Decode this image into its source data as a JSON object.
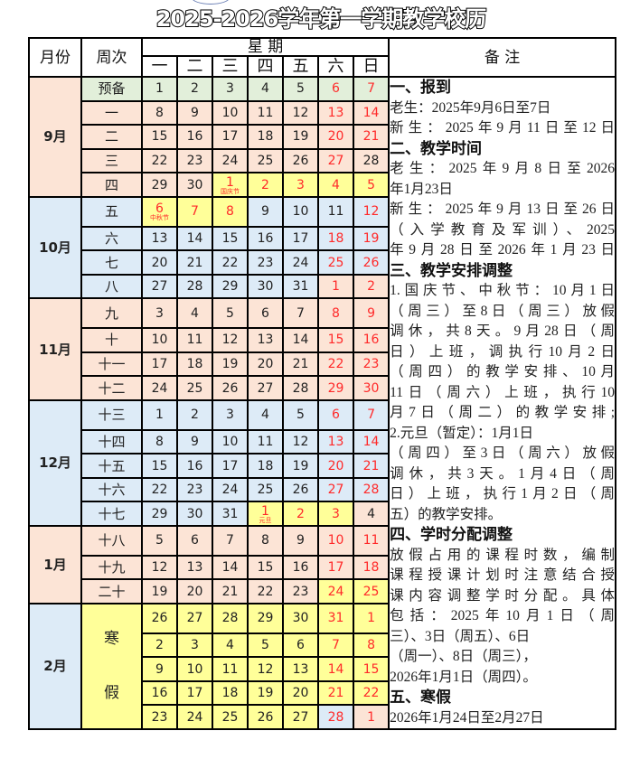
{
  "title": "2025-2026学年第一学期教学校历",
  "colors": {
    "pink": "#fce4d6",
    "blue": "#ddebf7",
    "green": "#e2efda",
    "yellow": "#ffff99",
    "red": "#ff2a2a"
  },
  "header": {
    "month": "月份",
    "week": "周次",
    "weekdays_title": "星 期",
    "notes": "备 注",
    "weekdays": [
      "一",
      "二",
      "三",
      "四",
      "五",
      "六",
      "日"
    ]
  },
  "winter_break": {
    "label_1": "寒",
    "label_2": "假"
  },
  "months": [
    {
      "label": "9月",
      "bg": "pink",
      "rows": [
        {
          "week": "预备",
          "wbg": "green",
          "bg": "green",
          "days": [
            "1",
            "2",
            "3",
            "4",
            "5",
            "6",
            "7"
          ],
          "red": [
            5,
            6
          ]
        },
        {
          "week": "一",
          "days": [
            "8",
            "9",
            "10",
            "11",
            "12",
            "13",
            "14"
          ],
          "red": [
            5,
            6
          ]
        },
        {
          "week": "二",
          "days": [
            "15",
            "16",
            "17",
            "18",
            "19",
            "20",
            "21"
          ],
          "red": [
            5,
            6
          ]
        },
        {
          "week": "三",
          "days": [
            "22",
            "23",
            "24",
            "25",
            "26",
            "27",
            "28"
          ],
          "red": [
            5
          ]
        },
        {
          "week": "四",
          "days": [
            "29",
            "30",
            "1",
            "2",
            "3",
            "4",
            "5"
          ],
          "red": [
            2,
            3,
            4,
            5,
            6
          ],
          "yellow": [
            2,
            3,
            4,
            5,
            6
          ],
          "notes": {
            "2": "国庆节"
          }
        }
      ]
    },
    {
      "label": "10月",
      "bg": "blue",
      "rows": [
        {
          "week": "五",
          "days": [
            "6",
            "7",
            "8",
            "9",
            "10",
            "11",
            "12"
          ],
          "red": [
            0,
            1,
            2,
            6
          ],
          "yellow": [
            0,
            1,
            2
          ],
          "notes": {
            "0": "中秋节"
          }
        },
        {
          "week": "六",
          "days": [
            "13",
            "14",
            "15",
            "16",
            "17",
            "18",
            "19"
          ],
          "red": [
            5,
            6
          ]
        },
        {
          "week": "七",
          "days": [
            "20",
            "21",
            "22",
            "23",
            "24",
            "25",
            "26"
          ],
          "red": [
            5,
            6
          ]
        },
        {
          "week": "八",
          "days": [
            "27",
            "28",
            "29",
            "30",
            "31",
            "1",
            "2"
          ],
          "red": [
            5,
            6
          ],
          "pink": [
            5,
            6
          ]
        }
      ]
    },
    {
      "label": "11月",
      "bg": "pink",
      "rows": [
        {
          "week": "九",
          "days": [
            "3",
            "4",
            "5",
            "6",
            "7",
            "8",
            "9"
          ],
          "red": [
            5,
            6
          ]
        },
        {
          "week": "十",
          "days": [
            "10",
            "11",
            "12",
            "13",
            "14",
            "15",
            "16"
          ],
          "red": [
            5,
            6
          ]
        },
        {
          "week": "十一",
          "days": [
            "17",
            "18",
            "19",
            "20",
            "21",
            "22",
            "23"
          ],
          "red": [
            5,
            6
          ]
        },
        {
          "week": "十二",
          "days": [
            "24",
            "25",
            "26",
            "27",
            "28",
            "29",
            "30"
          ],
          "red": [
            5,
            6
          ]
        }
      ]
    },
    {
      "label": "12月",
      "bg": "blue",
      "rows": [
        {
          "week": "十三",
          "days": [
            "1",
            "2",
            "3",
            "4",
            "5",
            "6",
            "7"
          ],
          "red": [
            5,
            6
          ]
        },
        {
          "week": "十四",
          "days": [
            "8",
            "9",
            "10",
            "11",
            "12",
            "13",
            "14"
          ],
          "red": [
            5,
            6
          ]
        },
        {
          "week": "十五",
          "days": [
            "15",
            "16",
            "17",
            "18",
            "19",
            "20",
            "21"
          ],
          "red": [
            5,
            6
          ]
        },
        {
          "week": "十六",
          "days": [
            "22",
            "23",
            "24",
            "25",
            "26",
            "27",
            "28"
          ],
          "red": [
            5,
            6
          ]
        },
        {
          "week": "十七",
          "days": [
            "29",
            "30",
            "31",
            "1",
            "2",
            "3",
            "4"
          ],
          "red": [
            3,
            4,
            5
          ],
          "yellow": [
            3,
            4,
            5
          ],
          "pink": [
            6
          ],
          "notes": {
            "3": "元旦"
          }
        }
      ]
    },
    {
      "label": "1月",
      "bg": "pink",
      "rows": [
        {
          "week": "十八",
          "days": [
            "5",
            "6",
            "7",
            "8",
            "9",
            "10",
            "11"
          ],
          "red": [
            5,
            6
          ]
        },
        {
          "week": "十九",
          "days": [
            "12",
            "13",
            "14",
            "15",
            "16",
            "17",
            "18"
          ],
          "red": [
            5,
            6
          ]
        },
        {
          "week": "二十",
          "days": [
            "19",
            "20",
            "21",
            "22",
            "23",
            "24",
            "25"
          ],
          "red": [
            5,
            6
          ],
          "yellow": [
            5,
            6
          ]
        }
      ]
    },
    {
      "label": "2月",
      "bg": "blue",
      "break": true,
      "rows": [
        {
          "days": [
            "26",
            "27",
            "28",
            "29",
            "30",
            "31",
            "1"
          ],
          "red": [
            5,
            6
          ],
          "yellow": [
            0,
            1,
            2,
            3,
            4,
            5,
            6
          ]
        },
        {
          "days": [
            "2",
            "3",
            "4",
            "5",
            "6",
            "7",
            "8"
          ],
          "red": [
            5,
            6
          ],
          "yellow": [
            0,
            1,
            2,
            3,
            4,
            5,
            6
          ]
        },
        {
          "days": [
            "9",
            "10",
            "11",
            "12",
            "13",
            "14",
            "15"
          ],
          "red": [
            5,
            6
          ],
          "yellow": [
            0,
            1,
            2,
            3,
            4,
            5,
            6
          ]
        },
        {
          "days": [
            "16",
            "17",
            "18",
            "19",
            "20",
            "21",
            "22"
          ],
          "red": [
            5,
            6
          ],
          "yellow": [
            0,
            1,
            2,
            3,
            4,
            5,
            6
          ]
        },
        {
          "days": [
            "23",
            "24",
            "25",
            "26",
            "27",
            "28",
            "1"
          ],
          "red": [
            5,
            6
          ],
          "yellow": [
            0,
            1,
            2,
            3,
            4
          ],
          "blue": [
            5
          ],
          "pink": [
            6
          ]
        }
      ]
    }
  ],
  "notes_lines": [
    {
      "t": "一、报到",
      "h": true
    },
    {
      "t": "老生：2025年9月6日至7日"
    },
    {
      "t": "新生：2025年9月11日至12日",
      "j": true
    },
    {
      "t": "二、教学时间",
      "h": true
    },
    {
      "t": "老生：2025年9月8日至2026",
      "j": true
    },
    {
      "t": "年1月23日"
    },
    {
      "t": "新生：2025年9月13日至26日",
      "j": true
    },
    {
      "t": "（入学教育及军训）、2025",
      "j": true
    },
    {
      "t": "年9月28日至2026年1月23日",
      "j": true
    },
    {
      "t": "三、教学安排调整",
      "h": true
    },
    {
      "t": "1.国庆节、中秋节：10月1日",
      "j": true
    },
    {
      "t": "（周三）至8日（周三）放假",
      "j": true
    },
    {
      "t": "调休，共8天。9月28日（周",
      "j": true
    },
    {
      "t": "日）上班，调执行10月2日",
      "j": true
    },
    {
      "t": "（周四）的教学安排、10月",
      "j": true
    },
    {
      "t": "11日（周六）上班，执行10",
      "j": true
    },
    {
      "t": "月7日（周二）的教学安排;",
      "j": true
    },
    {
      "t": "2.元旦（暂定）：1月1日"
    },
    {
      "t": "（周四）至3日（周六）放假",
      "j": true
    },
    {
      "t": "调休，共3天。1月4日（周",
      "j": true
    },
    {
      "t": "日）上班，执行1月2日（周",
      "j": true
    },
    {
      "t": "五）的教学安排。"
    },
    {
      "t": "四、学时分配调整",
      "h": true
    },
    {
      "t": "放假占用的课程时数，编制",
      "j": true
    },
    {
      "t": "课程授课计划时注意结合授",
      "j": true
    },
    {
      "t": "课内容调整学时分配。具体",
      "j": true
    },
    {
      "t": "包括：2025年10月1日（周",
      "j": true
    },
    {
      "t": "三）、3日（周五）、6日"
    },
    {
      "t": "（周一）、8日（周三），"
    },
    {
      "t": "2026年1月1日（周四）。"
    },
    {
      "t": "五、寒假",
      "h": true
    },
    {
      "t": "2026年1月24日至2月27日"
    }
  ]
}
